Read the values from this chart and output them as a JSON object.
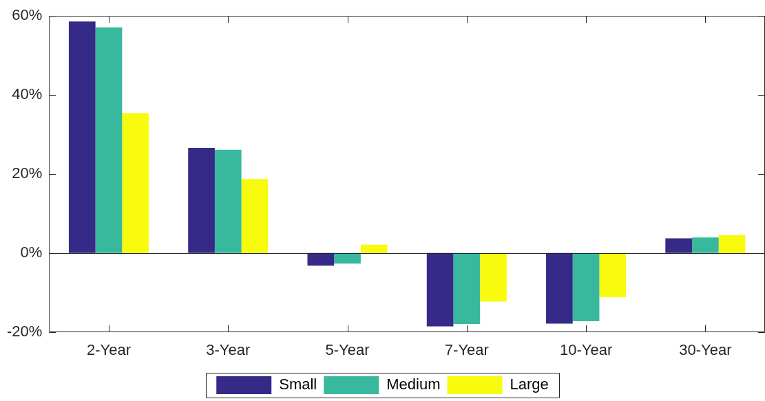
{
  "chart_data": {
    "type": "bar",
    "categories": [
      "2-Year",
      "3-Year",
      "5-Year",
      "7-Year",
      "10-Year",
      "30-Year"
    ],
    "series": [
      {
        "name": "Small",
        "color": "#352a87",
        "values": [
          58.6,
          26.6,
          -3.2,
          -18.6,
          -17.9,
          3.7
        ]
      },
      {
        "name": "Medium",
        "color": "#38b99e",
        "values": [
          57.1,
          26.1,
          -2.7,
          -18.0,
          -17.3,
          3.9
        ]
      },
      {
        "name": "Large",
        "color": "#f9fb0e",
        "values": [
          35.4,
          18.7,
          2.1,
          -12.3,
          -11.2,
          4.5
        ]
      }
    ],
    "ylim": [
      -20,
      60
    ],
    "yticks": [
      {
        "value": -20,
        "label": "-20%"
      },
      {
        "value": 0,
        "label": "0%"
      },
      {
        "value": 20,
        "label": "20%"
      },
      {
        "value": 40,
        "label": "40%"
      },
      {
        "value": 60,
        "label": "60%"
      }
    ],
    "ref_lines": [
      {
        "axis": "y",
        "value": 0
      }
    ],
    "legend": "bottom"
  }
}
